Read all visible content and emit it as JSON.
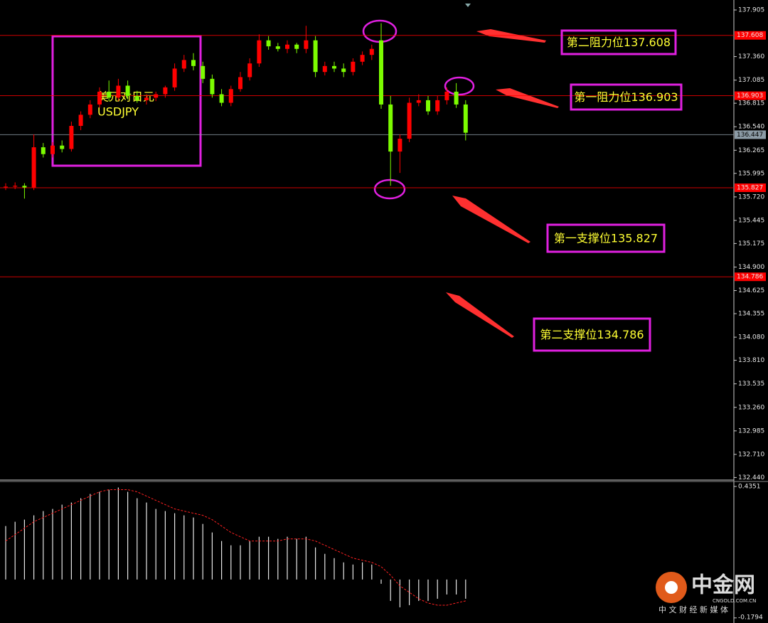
{
  "chart_data": {
    "type": "candlestick",
    "title": "美元对日元",
    "subtitle": "USDJPY",
    "up_color": "#ff0000",
    "down_color": "#7cfc00",
    "open": [
      135.84,
      135.84,
      135.85,
      135.83,
      136.3,
      136.22,
      136.32,
      136.28,
      136.55,
      136.68,
      136.8,
      136.95,
      136.88,
      137.02,
      136.9,
      136.85,
      136.88,
      136.92,
      137.0,
      137.22,
      137.32,
      137.25,
      137.1,
      136.92,
      136.82,
      136.98,
      137.12,
      137.28,
      137.55,
      137.48,
      137.45,
      137.5,
      137.45,
      137.55,
      137.18,
      137.25,
      137.22,
      137.18,
      137.3,
      137.38,
      137.55,
      136.8,
      136.25,
      136.4,
      136.82,
      136.85,
      136.72,
      136.85,
      136.95,
      136.8
    ],
    "high": [
      135.88,
      135.89,
      135.88,
      136.45,
      136.35,
      136.36,
      136.38,
      136.6,
      136.72,
      136.85,
      137.0,
      137.08,
      137.1,
      137.08,
      136.96,
      136.92,
      136.95,
      137.02,
      137.28,
      137.38,
      137.4,
      137.3,
      137.15,
      136.98,
      137.02,
      137.18,
      137.34,
      137.62,
      137.6,
      137.52,
      137.55,
      137.52,
      137.72,
      137.6,
      137.3,
      137.3,
      137.28,
      137.34,
      137.42,
      137.5,
      137.75,
      136.9,
      136.45,
      136.88,
      136.92,
      136.9,
      136.9,
      137.0,
      137.05,
      136.85
    ],
    "low": [
      135.8,
      135.81,
      135.7,
      135.8,
      136.18,
      136.18,
      136.24,
      136.25,
      136.5,
      136.64,
      136.76,
      136.84,
      136.84,
      136.86,
      136.82,
      136.8,
      136.84,
      136.88,
      136.96,
      137.18,
      137.2,
      137.05,
      136.88,
      136.78,
      136.78,
      136.95,
      137.08,
      137.24,
      137.44,
      137.42,
      137.4,
      137.4,
      137.4,
      137.12,
      137.14,
      137.18,
      137.12,
      137.14,
      137.26,
      137.32,
      136.75,
      135.85,
      136.0,
      136.36,
      136.78,
      136.68,
      136.68,
      136.8,
      136.76,
      136.38
    ],
    "close": [
      135.84,
      135.85,
      135.83,
      136.3,
      136.22,
      136.32,
      136.28,
      136.55,
      136.68,
      136.8,
      136.95,
      136.88,
      137.02,
      136.9,
      136.85,
      136.88,
      136.92,
      137.0,
      137.22,
      137.32,
      137.25,
      137.1,
      136.92,
      136.82,
      136.98,
      137.12,
      137.28,
      137.55,
      137.48,
      137.45,
      137.5,
      137.45,
      137.55,
      137.18,
      137.25,
      137.22,
      137.18,
      137.3,
      137.38,
      137.45,
      136.8,
      136.25,
      136.4,
      136.82,
      136.85,
      136.72,
      136.85,
      136.95,
      136.8,
      136.47
    ],
    "ylim": [
      132.41,
      137.98
    ],
    "yticks": [
      137.905,
      {
        "value": 137.36,
        "label": "137.360"
      },
      137.085,
      136.815,
      {
        "value": 136.54,
        "label": "136.540"
      },
      136.265,
      135.995,
      {
        "value": 135.72,
        "label": "135.720"
      },
      135.445,
      135.175,
      {
        "value": 134.9,
        "label": "134.900"
      },
      134.625,
      134.355,
      {
        "value": 134.08,
        "label": "134.080"
      },
      {
        "value": 133.81,
        "label": "133.810"
      },
      133.535,
      {
        "value": 133.26,
        "label": "133.260"
      },
      132.985,
      {
        "value": 132.71,
        "label": "132.710"
      },
      {
        "value": 132.44,
        "label": "132.440"
      }
    ],
    "levels": [
      {
        "value": 137.608,
        "color": "#ff0000"
      },
      {
        "value": 136.903,
        "color": "#ff0000"
      },
      {
        "value": 136.447,
        "color": "#8c9ba6"
      },
      {
        "value": 135.827,
        "color": "#ff0000"
      },
      {
        "value": 134.786,
        "color": "#ff0000"
      }
    ],
    "annotations": [
      "第二阻力位137.608",
      "第一阻力位136.903",
      "第一支撑位135.827",
      "第二支撑位134.786"
    ],
    "indicator": {
      "type": "macd",
      "histogram": [
        0.25,
        0.27,
        0.28,
        0.3,
        0.32,
        0.33,
        0.35,
        0.36,
        0.38,
        0.4,
        0.41,
        0.42,
        0.43,
        0.41,
        0.38,
        0.36,
        0.33,
        0.32,
        0.31,
        0.3,
        0.29,
        0.26,
        0.22,
        0.18,
        0.16,
        0.16,
        0.18,
        0.2,
        0.2,
        0.19,
        0.2,
        0.19,
        0.2,
        0.15,
        0.12,
        0.1,
        0.08,
        0.07,
        0.08,
        0.07,
        -0.02,
        -0.1,
        -0.13,
        -0.12,
        -0.1,
        -0.1,
        -0.09,
        -0.07,
        -0.07,
        -0.09
      ],
      "signal": [
        0.18,
        0.21,
        0.24,
        0.27,
        0.29,
        0.31,
        0.33,
        0.35,
        0.37,
        0.39,
        0.41,
        0.42,
        0.42,
        0.42,
        0.41,
        0.39,
        0.37,
        0.35,
        0.33,
        0.32,
        0.31,
        0.3,
        0.28,
        0.25,
        0.22,
        0.2,
        0.18,
        0.18,
        0.18,
        0.18,
        0.19,
        0.19,
        0.19,
        0.18,
        0.16,
        0.14,
        0.12,
        0.1,
        0.09,
        0.08,
        0.06,
        0.02,
        -0.03,
        -0.06,
        -0.09,
        -0.11,
        -0.12,
        -0.12,
        -0.11,
        -0.1
      ],
      "ylim": [
        -0.2,
        0.455
      ],
      "yticks": [
        0.4351,
        -0.1794
      ]
    },
    "watermark": {
      "brand": "中金网",
      "site": "CNGOLD.COM.CN",
      "slogan": "中 文 财 经 新 媒 体"
    }
  }
}
